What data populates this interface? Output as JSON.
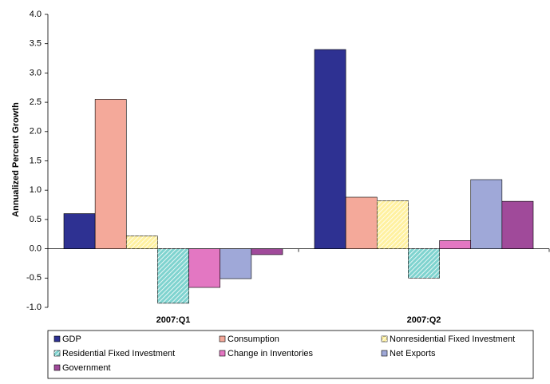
{
  "chart_data": {
    "type": "bar",
    "y_label": "Annualized Percent Growth",
    "categories": [
      "2007:Q1",
      "2007:Q2"
    ],
    "series": [
      {
        "name": "GDP",
        "color": "#2e3192",
        "values": [
          0.6,
          3.4
        ]
      },
      {
        "name": "Consumption",
        "color": "#f4a99a",
        "values": [
          2.55,
          0.88
        ]
      },
      {
        "name": "Nonresidential Fixed Investment",
        "color": "#fff1a0",
        "hatched": true,
        "values": [
          0.22,
          0.82
        ]
      },
      {
        "name": "Residential Fixed Investment",
        "color": "#7fd3cf",
        "hatched": true,
        "values": [
          -0.93,
          -0.5
        ]
      },
      {
        "name": "Change in Inventories",
        "color": "#e377c2",
        "values": [
          -0.66,
          0.14
        ]
      },
      {
        "name": "Net Exports",
        "color": "#9fa8d8",
        "values": [
          -0.51,
          1.18
        ]
      },
      {
        "name": "Government",
        "color": "#a04a9a",
        "values": [
          -0.1,
          0.81
        ]
      }
    ],
    "ylim": [
      -1,
      4
    ],
    "yticks": [
      {
        "value": 4,
        "label": "4.0"
      },
      3.5,
      {
        "value": 3,
        "label": "3.0"
      },
      2.5,
      {
        "value": 2,
        "label": "2.0"
      },
      1.5,
      {
        "value": 1,
        "label": "1.0"
      },
      0.5,
      {
        "value": 0,
        "label": "0.0"
      },
      -0.5,
      {
        "value": -1,
        "label": "-1.0"
      }
    ],
    "grid": false
  }
}
